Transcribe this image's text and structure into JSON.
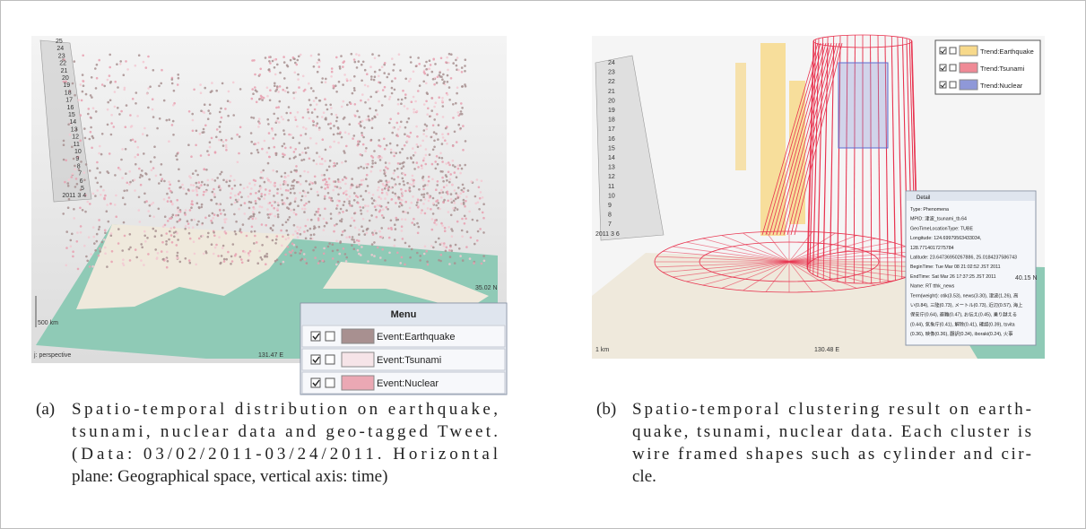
{
  "panel_a": {
    "time_axis_labels": [
      "25",
      "24",
      "23",
      "22",
      "21",
      "20",
      "19",
      "18",
      "17",
      "16",
      "15",
      "14",
      "13",
      "12",
      "11",
      "10",
      "9",
      "8",
      "7",
      "6",
      "5",
      "2011 3 4"
    ],
    "scale_label": "500 km",
    "view_label": "j: perspective",
    "longitude_label": "131.47 E",
    "latitude_label": "35.02 N",
    "menu": {
      "title": "Menu",
      "items": [
        {
          "label": "Event:Earthquake",
          "color": "#a89090"
        },
        {
          "label": "Event:Tsunami",
          "color": "#f6e4e8"
        },
        {
          "label": "Event:Nuclear",
          "color": "#eba8b4"
        }
      ]
    }
  },
  "caption_a": {
    "label": "(a)",
    "lines": [
      "Spatio-temporal distribution on earthquake,",
      "tsunami, nuclear data and geo-tagged Tweet.",
      "(Data: 03/02/2011-03/24/2011. Horizontal",
      "plane: Geographical space, vertical axis: time)"
    ]
  },
  "panel_b": {
    "time_axis_labels": [
      "24",
      "23",
      "22",
      "21",
      "20",
      "19",
      "18",
      "17",
      "16",
      "15",
      "14",
      "13",
      "12",
      "11",
      "10",
      "9",
      "8",
      "7",
      "2011 3 6"
    ],
    "legend": [
      {
        "label": "Trend:Earthquake",
        "color": "#f7d98b"
      },
      {
        "label": "Trend:Tsunami",
        "color": "#ef8a96"
      },
      {
        "label": "Trend:Nuclear",
        "color": "#8f98d8"
      }
    ],
    "detail": {
      "title": "Detail",
      "lines": [
        "Type: Phenomena",
        "MPID: 津波_tsunami_tb.64",
        "GeoTimeLocationType: TUBE",
        "Longitude: 124.69979563433034,",
        "128.7714017275784",
        "Latitude: 23.64736950267886, 25.0184237586743",
        "BeginTime: Tue Mar 08 21:02:52 JST 2011",
        "EndTime: Sat Mar 26 17:37:25 JST 2011",
        "Name: RT tthk_news",
        "Term(weight): otik(3.53), news(3.30), 津波(1.26), 高",
        "い(0.84), 三陸(0.73), メートル(0.73), 近辺(0.57), 海上",
        "保安庁(0.64), 避難(0.47), お伝え(0.45), 乗り越える",
        "(0.44), 気象庁(0.41), 解除(0.41), 確認(0.39), tsvita",
        "(0.36), 映像(0.36), 翻訳(0.34), iboraki(0.24), 火事"
      ]
    },
    "scale_label": "1 km",
    "longitude_label": "130.48 E",
    "latitude_label": "40.15 N"
  },
  "caption_b": {
    "label": "(b)",
    "lines": [
      "Spatio-temporal clustering result on earth-",
      "quake, tsunami, nuclear data. Each cluster is",
      "wire framed shapes such as cylinder and cir-",
      "cle."
    ]
  }
}
